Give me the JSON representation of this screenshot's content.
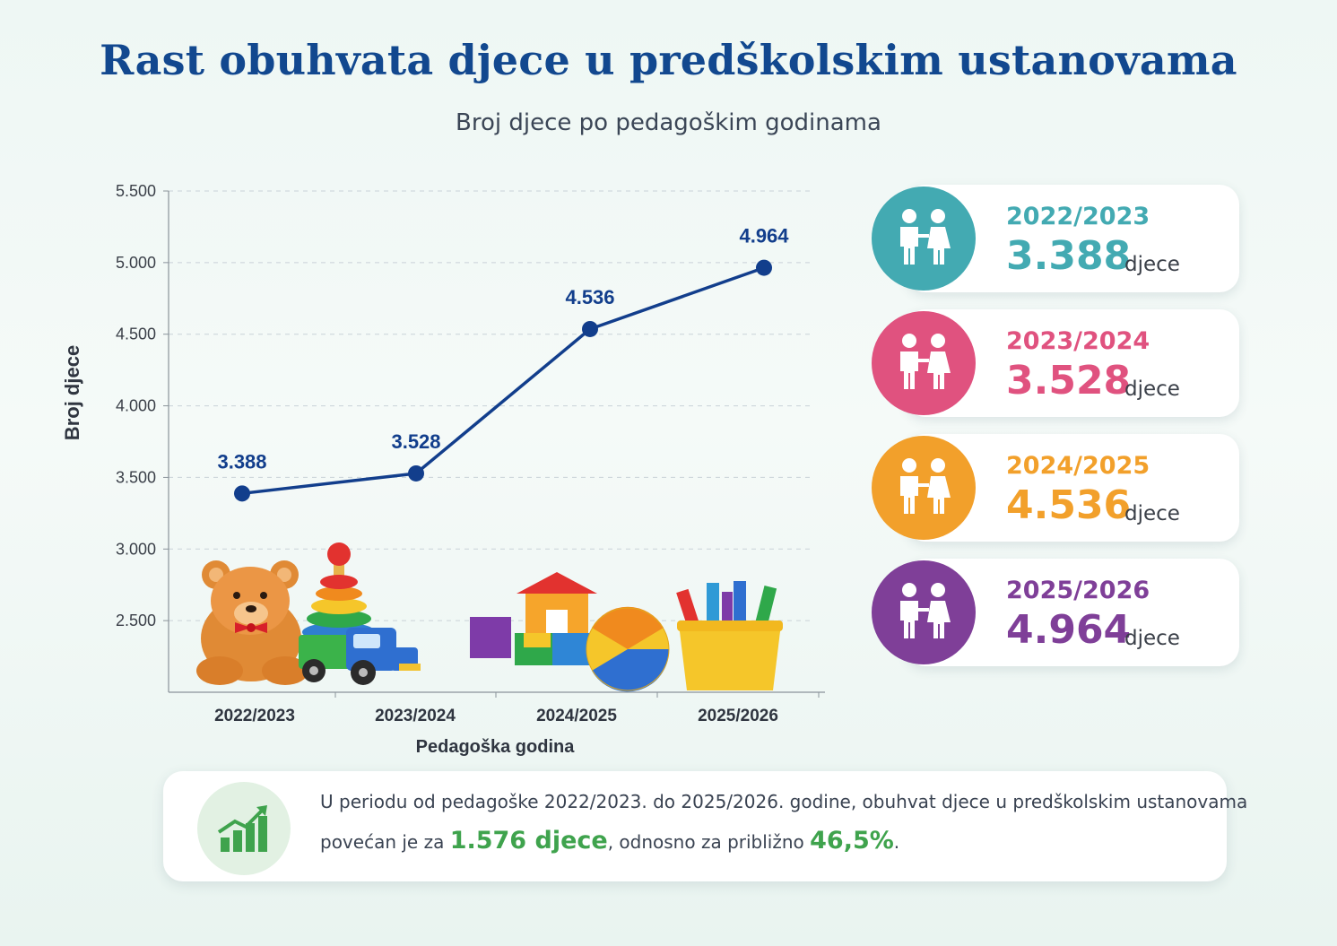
{
  "title": "Rast obuhvata djece u predškolskim ustanovama",
  "subtitle": "Broj djece po pedagoškim godinama",
  "chart_data": {
    "type": "line",
    "categories": [
      "2022/2023",
      "2023/2024",
      "2024/2025",
      "2025/2026"
    ],
    "series": [
      {
        "values": [
          3388,
          3528,
          4536,
          4964
        ]
      }
    ],
    "data_labels": [
      "3.388",
      "3.528",
      "4.536",
      "4.964"
    ],
    "ylim": [
      2000,
      5500
    ],
    "yticks": [
      2500,
      3000,
      3500,
      4000,
      4500,
      5000,
      5500
    ],
    "ytick_labels": [
      "2.500",
      "3.000",
      "3.500",
      "4.000",
      "4.500",
      "5.000",
      "5.500"
    ],
    "xlabel": "Pedagoška godina",
    "ylabel": "Broj djece",
    "grid": "horizontal dashed",
    "line_color": "#123e8c"
  },
  "cards": [
    {
      "year": "2022/2023",
      "value": "3.388",
      "unit": "djece",
      "color": "#43aab2",
      "icon": "children-icon"
    },
    {
      "year": "2023/2024",
      "value": "3.528",
      "unit": "djece",
      "color": "#e0527f",
      "icon": "children-icon"
    },
    {
      "year": "2024/2025",
      "value": "4.536",
      "unit": "djece",
      "color": "#f2a02b",
      "icon": "children-icon"
    },
    {
      "year": "2025/2026",
      "value": "4.964",
      "unit": "djece",
      "color": "#7f3f98",
      "icon": "children-icon"
    }
  ],
  "summary": {
    "icon": "growth-chart-icon",
    "line1": "U periodu od pedagoške 2022/2023. do 2025/2026. godine, obuhvat djece u predškolskim ustanovama",
    "line2_pre": "povećan je za ",
    "highlight1": "1.576 djece",
    "line2_mid": ", odnosno za približno ",
    "highlight2": "46,5%",
    "line2_end": "."
  },
  "illustration": "toys-illustration"
}
